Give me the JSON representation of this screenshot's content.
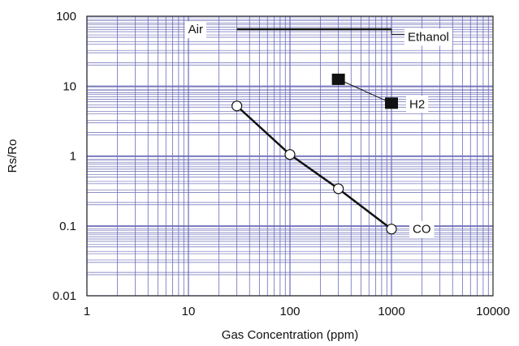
{
  "chart_data": {
    "type": "line",
    "title": "",
    "xlabel": "Gas Concentration (ppm)",
    "ylabel": "Rs/Ro",
    "xscale": "log",
    "yscale": "log",
    "xlim": [
      1,
      10000
    ],
    "ylim": [
      0.01,
      100
    ],
    "x_tick_labels": [
      "1",
      "10",
      "100",
      "1000",
      "10000"
    ],
    "y_tick_labels": [
      "100",
      "10",
      "1",
      "0.1",
      "0.01"
    ],
    "grid": true,
    "colors": {
      "grid": "#6b6bb8",
      "series": "#111111",
      "background": "#ffffff"
    },
    "series": [
      {
        "name": "Air",
        "marker": "none",
        "x": [
          30,
          1000
        ],
        "y": [
          65,
          65
        ]
      },
      {
        "name": "Ethanol",
        "marker": "none",
        "x": [
          1000,
          1000
        ],
        "y": [
          65,
          55
        ]
      },
      {
        "name": "H2",
        "marker": "filled-square",
        "x": [
          300,
          1000
        ],
        "y": [
          12.5,
          5.7
        ]
      },
      {
        "name": "CO",
        "marker": "open-circle",
        "x": [
          30,
          100,
          300,
          1000
        ],
        "y": [
          5.2,
          1.05,
          0.34,
          0.09
        ]
      }
    ]
  }
}
